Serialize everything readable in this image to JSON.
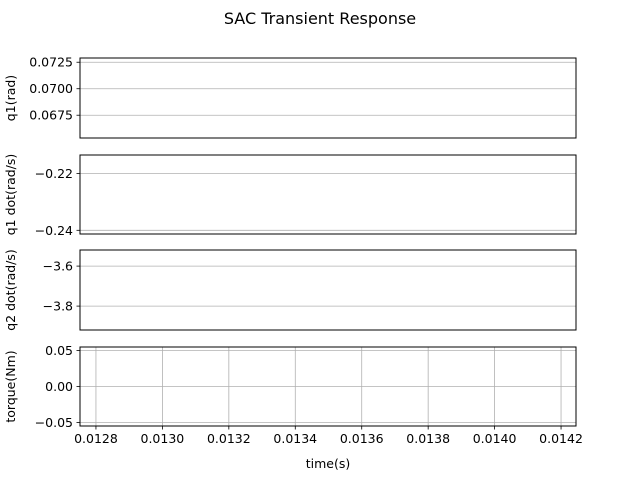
{
  "chart_data": {
    "type": "line",
    "title": "SAC Transient Response",
    "xlabel": "time(s)",
    "xlim": [
      0.012752,
      0.014245
    ],
    "xticks": [
      "0.0128",
      "0.0130",
      "0.0132",
      "0.0134",
      "0.0136",
      "0.0138",
      "0.0140",
      "0.0142"
    ],
    "xtick_values": [
      0.0128,
      0.013,
      0.0132,
      0.0134,
      0.0136,
      0.0138,
      0.014,
      0.0142
    ],
    "subplots": [
      {
        "ylabel": "q1(rad)",
        "ylim": [
          0.06535,
          0.0729
        ],
        "yticks": [
          "0.0675",
          "0.0700",
          "0.0725"
        ],
        "ytick_values": [
          0.0675,
          0.07,
          0.0725
        ],
        "grid": "y",
        "series": []
      },
      {
        "ylabel": "q1 dot(rad/s)",
        "ylim": [
          -0.2413,
          -0.2135
        ],
        "yticks": [
          "−0.24",
          "−0.22"
        ],
        "ytick_values": [
          -0.24,
          -0.22
        ],
        "grid": "y",
        "series": []
      },
      {
        "ylabel": "q2 dot(rad/s)",
        "ylim": [
          -3.9195,
          -3.5195
        ],
        "yticks": [
          "−3.8",
          "−3.6"
        ],
        "ytick_values": [
          -3.8,
          -3.6
        ],
        "grid": "y",
        "series": []
      },
      {
        "ylabel": "torque(Nm)",
        "ylim": [
          -0.055,
          0.055
        ],
        "yticks": [
          "−0.05",
          "0.00",
          "0.05"
        ],
        "ytick_values": [
          -0.05,
          0.0,
          0.05
        ],
        "grid": "both",
        "series": []
      }
    ]
  }
}
